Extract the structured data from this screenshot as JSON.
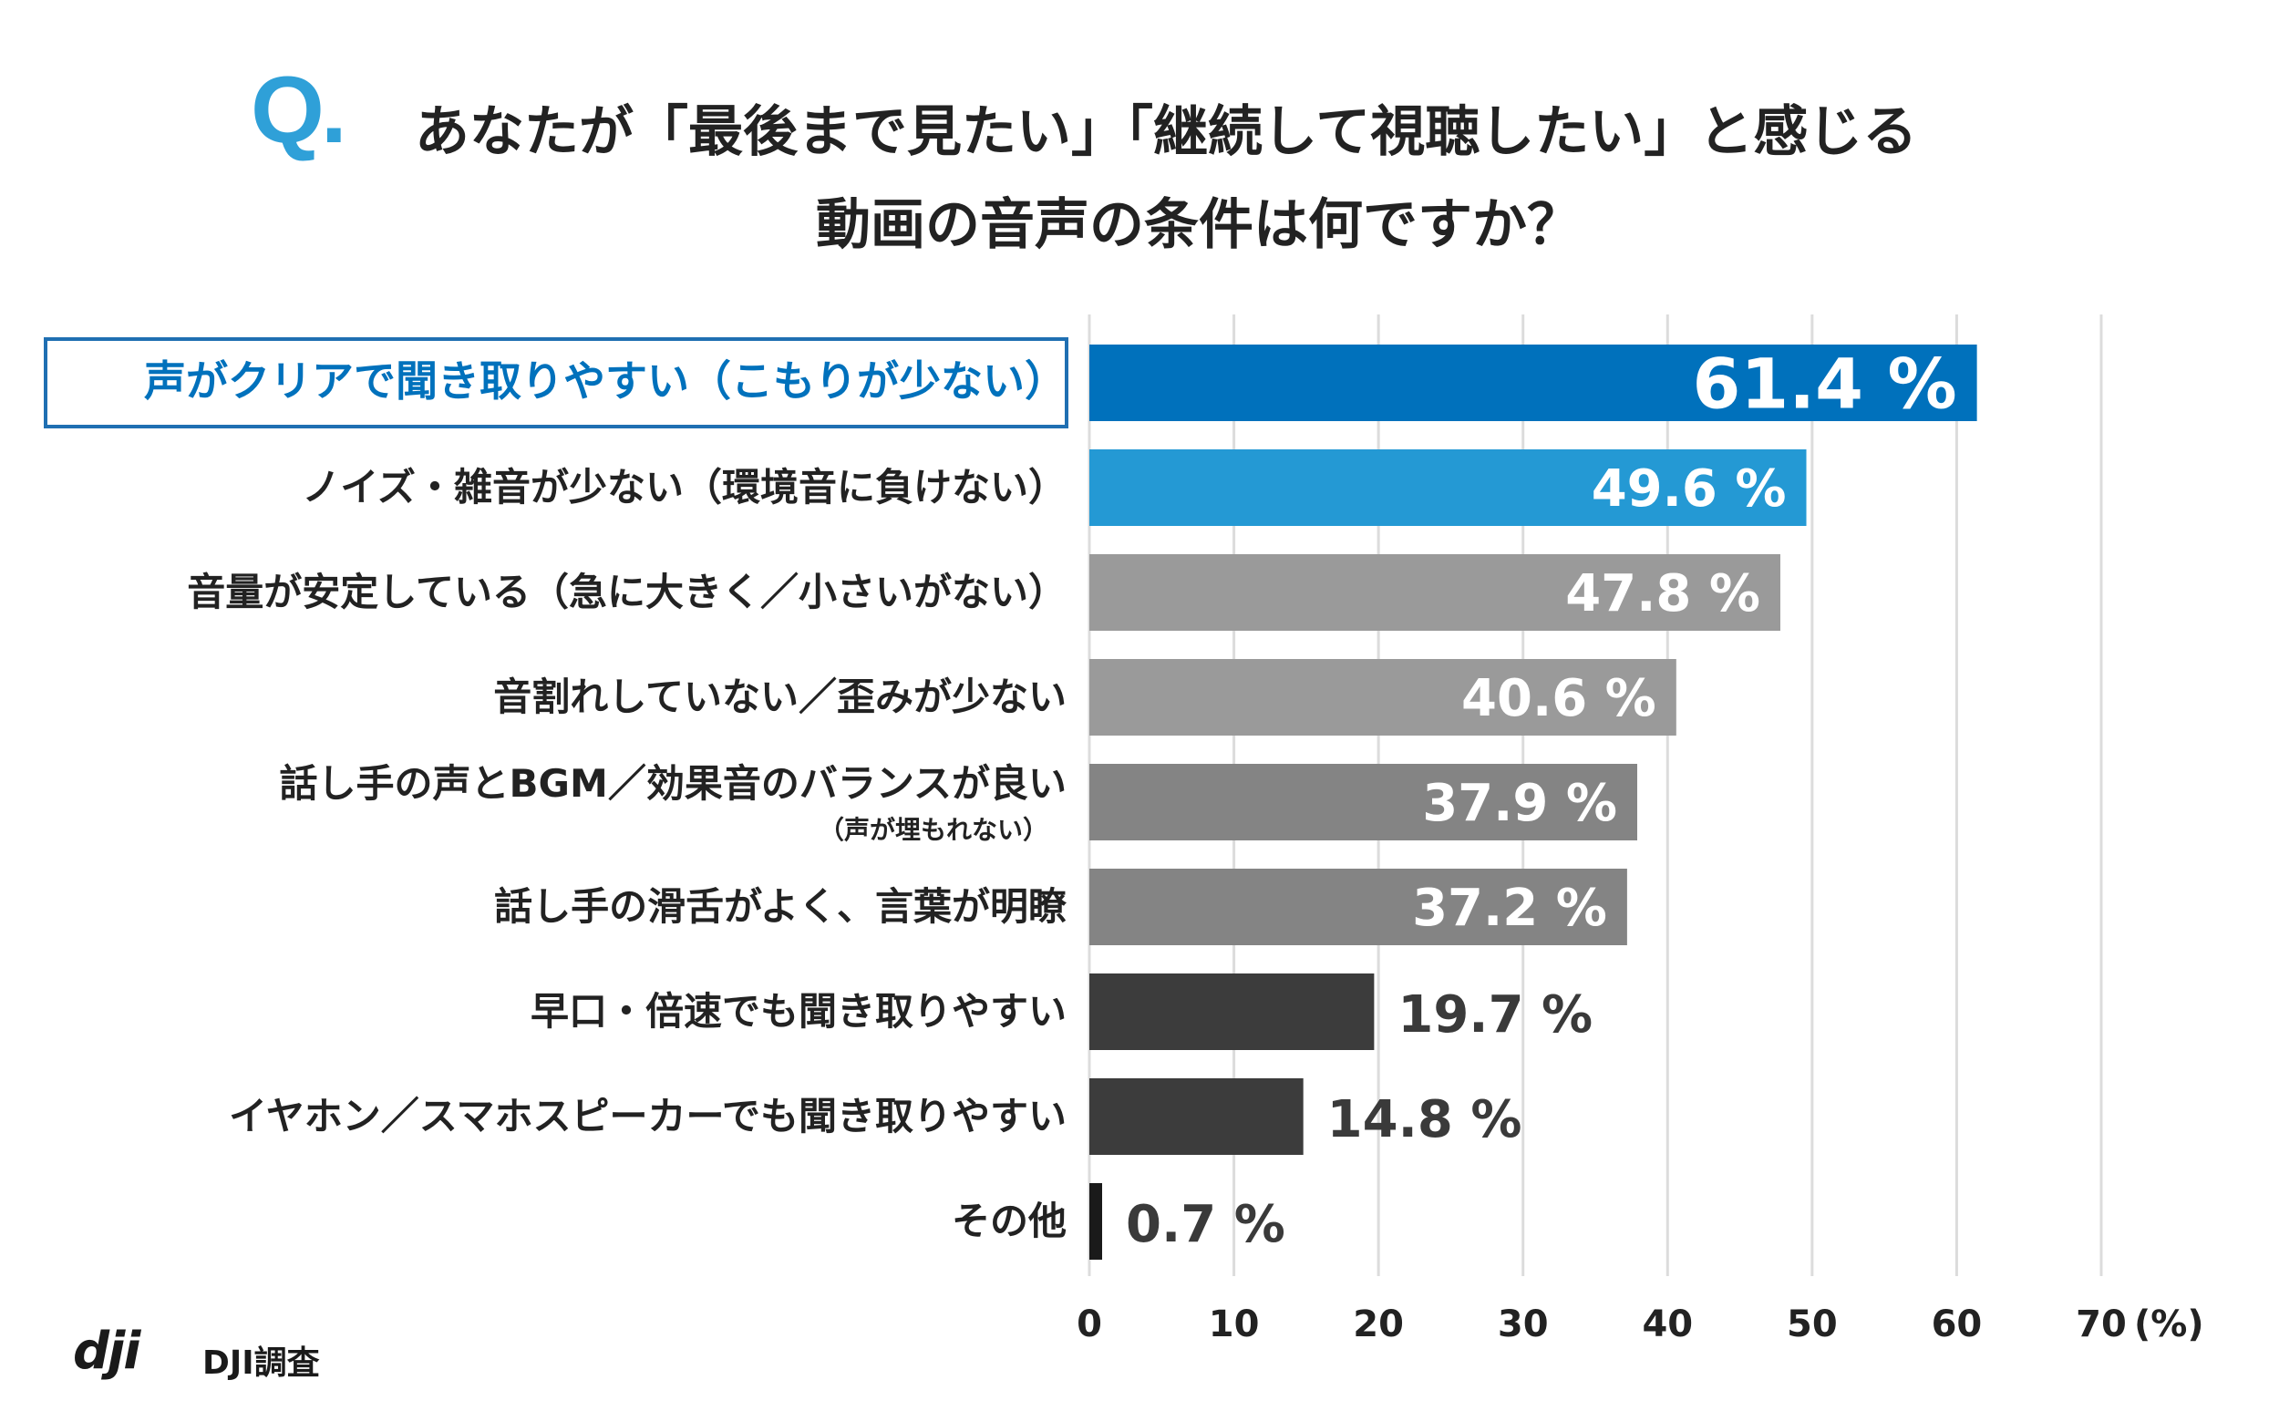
{
  "title": {
    "q_mark": "Q.",
    "line1": "あなたが「最後まで見たい」「継続して視聴したい」と感じる",
    "line2": "動画の音声の条件は何ですか？"
  },
  "source": {
    "logo": "dji",
    "label": "DJI調査"
  },
  "colors": {
    "accent": "#0071bc",
    "accent2": "#2499d4",
    "gray_light": "#9a9a9a",
    "gray_mid": "#848484",
    "gray_dark": "#3c3c3c",
    "black": "#1a1a1a",
    "grid": "#dcdcdc",
    "highlight_border": "#1f6fb2"
  },
  "chart_data": {
    "type": "bar",
    "orientation": "horizontal",
    "categories": [
      "声がクリアで聞き取りやすい（こもりが少ない）",
      "ノイズ・雑音が少ない（環境音に負けない）",
      "音量が安定している（急に大きく／小さいがない）",
      "音割れしていない／歪みが少ない",
      "話し手の声とBGM／効果音のバランスが良い",
      "話し手の滑舌がよく、言葉が明瞭",
      "早口・倍速でも聞き取りやすい",
      "イヤホン／スマホスピーカーでも聞き取りやすい",
      "その他"
    ],
    "sublabels": [
      "",
      "",
      "",
      "",
      "（声が埋もれない）",
      "",
      "",
      "",
      ""
    ],
    "values": [
      61.4,
      49.6,
      47.8,
      40.6,
      37.9,
      37.2,
      19.7,
      14.8,
      0.7
    ],
    "value_labels": [
      "61.4 %",
      "49.6 %",
      "47.8 %",
      "40.6 %",
      "37.9 %",
      "37.2 %",
      "19.7 %",
      "14.8 %",
      "0.7 %"
    ],
    "bar_colors": [
      "#0071bc",
      "#2499d4",
      "#9a9a9a",
      "#9a9a9a",
      "#848484",
      "#848484",
      "#3c3c3c",
      "#3c3c3c",
      "#1a1a1a"
    ],
    "xlim": [
      0,
      70
    ],
    "xticks": [
      "0",
      "10",
      "20",
      "30",
      "40",
      "50",
      "60",
      "70"
    ],
    "xunit": "(%)",
    "grid": true,
    "highlighted_category": 0
  }
}
